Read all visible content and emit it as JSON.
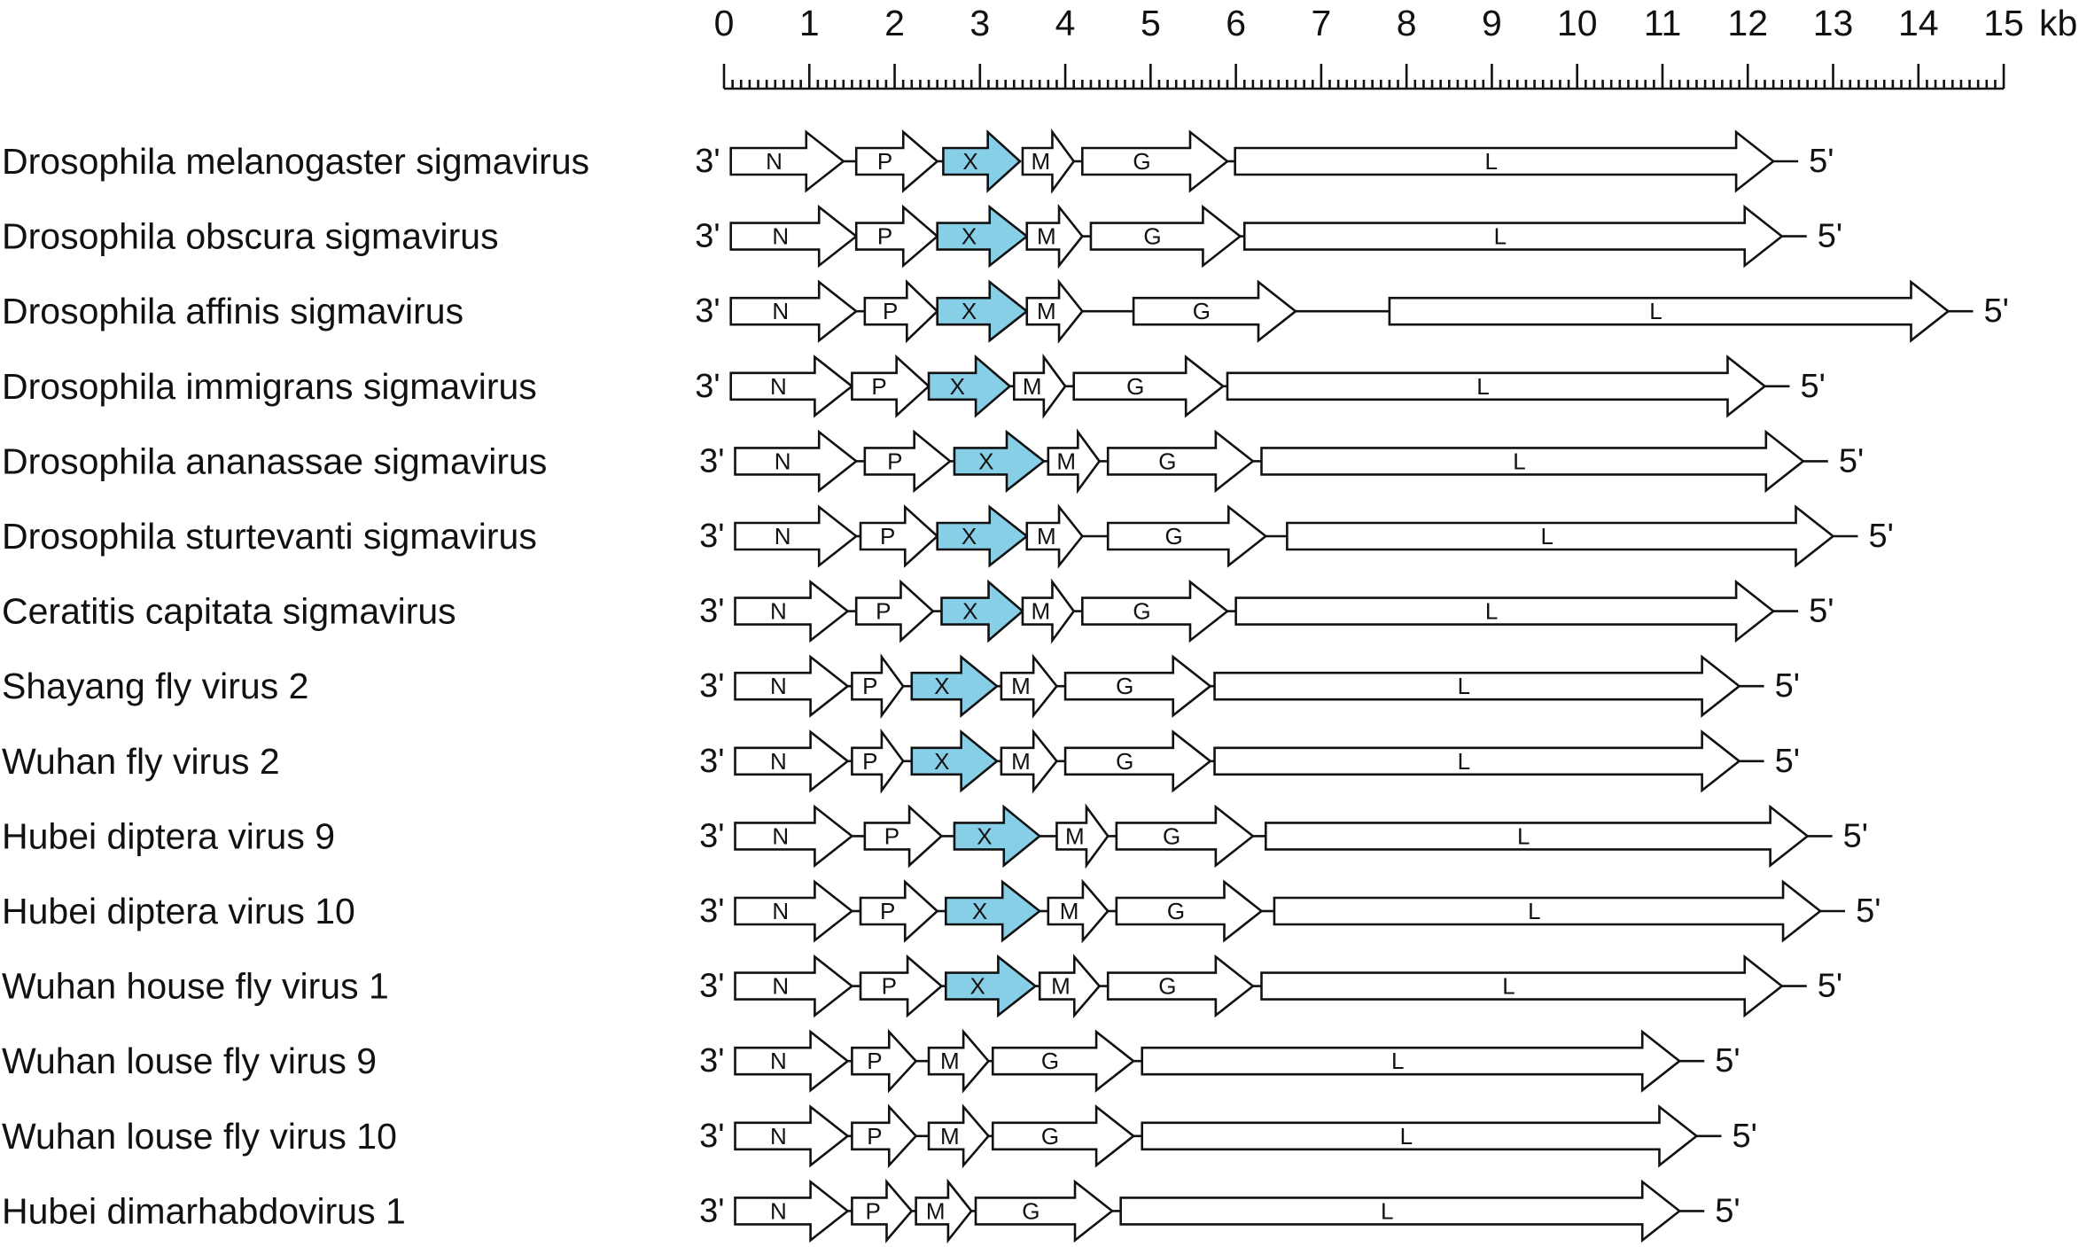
{
  "scale": {
    "unit": "kb",
    "min": 0,
    "max": 15,
    "major_ticks": [
      "0",
      "1",
      "2",
      "3",
      "4",
      "5",
      "6",
      "7",
      "8",
      "9",
      "10",
      "11",
      "12",
      "13",
      "14",
      "15"
    ],
    "minor_per_major": 10
  },
  "end_labels": {
    "left": "3'",
    "right": "5'"
  },
  "colors": {
    "x_gene_fill": "#87cfe6",
    "default_fill": "#ffffff",
    "stroke": "#111111"
  },
  "viruses": [
    {
      "name": "Drosophila melanogaster sigmavirus",
      "end": 12.3,
      "genes": [
        {
          "label": "N",
          "start": 0.08,
          "end": 1.4
        },
        {
          "label": "P",
          "start": 1.55,
          "end": 2.5
        },
        {
          "label": "X",
          "start": 2.57,
          "end": 3.47,
          "highlight": true
        },
        {
          "label": "M",
          "start": 3.5,
          "end": 4.1
        },
        {
          "label": "G",
          "start": 4.2,
          "end": 5.9
        },
        {
          "label": "L",
          "start": 5.99,
          "end": 12.3
        }
      ]
    },
    {
      "name": "Drosophila obscura sigmavirus",
      "end": 12.4,
      "genes": [
        {
          "label": "N",
          "start": 0.08,
          "end": 1.55
        },
        {
          "label": "P",
          "start": 1.55,
          "end": 2.5
        },
        {
          "label": "X",
          "start": 2.5,
          "end": 3.55,
          "highlight": true
        },
        {
          "label": "M",
          "start": 3.55,
          "end": 4.2
        },
        {
          "label": "G",
          "start": 4.3,
          "end": 6.05
        },
        {
          "label": "L",
          "start": 6.1,
          "end": 12.4
        }
      ]
    },
    {
      "name": "Drosophila affinis sigmavirus",
      "end": 14.35,
      "genes": [
        {
          "label": "N",
          "start": 0.08,
          "end": 1.55
        },
        {
          "label": "P",
          "start": 1.65,
          "end": 2.5
        },
        {
          "label": "X",
          "start": 2.5,
          "end": 3.55,
          "highlight": true
        },
        {
          "label": "M",
          "start": 3.55,
          "end": 4.2
        },
        {
          "label": "G",
          "start": 4.8,
          "end": 6.7
        },
        {
          "label": "L",
          "start": 7.8,
          "end": 14.35
        }
      ]
    },
    {
      "name": "Drosophila immigrans sigmavirus",
      "end": 12.2,
      "genes": [
        {
          "label": "N",
          "start": 0.08,
          "end": 1.5
        },
        {
          "label": "P",
          "start": 1.5,
          "end": 2.4
        },
        {
          "label": "X",
          "start": 2.4,
          "end": 3.35,
          "highlight": true
        },
        {
          "label": "M",
          "start": 3.4,
          "end": 4.0
        },
        {
          "label": "G",
          "start": 4.1,
          "end": 5.85
        },
        {
          "label": "L",
          "start": 5.9,
          "end": 12.2
        }
      ]
    },
    {
      "name": "Drosophila ananassae sigmavirus",
      "end": 12.65,
      "genes": [
        {
          "label": "N",
          "start": 0.13,
          "end": 1.55
        },
        {
          "label": "P",
          "start": 1.65,
          "end": 2.65
        },
        {
          "label": "X",
          "start": 2.7,
          "end": 3.75,
          "highlight": true
        },
        {
          "label": "M",
          "start": 3.8,
          "end": 4.4
        },
        {
          "label": "G",
          "start": 4.5,
          "end": 6.2
        },
        {
          "label": "L",
          "start": 6.3,
          "end": 12.65
        }
      ]
    },
    {
      "name": "Drosophila sturtevanti sigmavirus",
      "end": 13.0,
      "genes": [
        {
          "label": "N",
          "start": 0.13,
          "end": 1.55
        },
        {
          "label": "P",
          "start": 1.6,
          "end": 2.5
        },
        {
          "label": "X",
          "start": 2.5,
          "end": 3.55,
          "highlight": true
        },
        {
          "label": "M",
          "start": 3.55,
          "end": 4.2
        },
        {
          "label": "G",
          "start": 4.5,
          "end": 6.35
        },
        {
          "label": "L",
          "start": 6.6,
          "end": 13.0
        }
      ]
    },
    {
      "name": "Ceratitis capitata sigmavirus",
      "end": 12.3,
      "genes": [
        {
          "label": "N",
          "start": 0.13,
          "end": 1.45
        },
        {
          "label": "P",
          "start": 1.55,
          "end": 2.45
        },
        {
          "label": "X",
          "start": 2.55,
          "end": 3.5,
          "highlight": true
        },
        {
          "label": "M",
          "start": 3.5,
          "end": 4.1
        },
        {
          "label": "G",
          "start": 4.2,
          "end": 5.9
        },
        {
          "label": "L",
          "start": 6.0,
          "end": 12.3
        }
      ]
    },
    {
      "name": "Shayang fly virus 2",
      "end": 11.9,
      "genes": [
        {
          "label": "N",
          "start": 0.13,
          "end": 1.45
        },
        {
          "label": "P",
          "start": 1.5,
          "end": 2.1
        },
        {
          "label": "X",
          "start": 2.2,
          "end": 3.2,
          "highlight": true
        },
        {
          "label": "M",
          "start": 3.25,
          "end": 3.9
        },
        {
          "label": "G",
          "start": 4.0,
          "end": 5.7
        },
        {
          "label": "L",
          "start": 5.75,
          "end": 11.9
        }
      ]
    },
    {
      "name": "Wuhan fly virus 2",
      "end": 11.9,
      "genes": [
        {
          "label": "N",
          "start": 0.13,
          "end": 1.45
        },
        {
          "label": "P",
          "start": 1.5,
          "end": 2.1
        },
        {
          "label": "X",
          "start": 2.2,
          "end": 3.2,
          "highlight": true
        },
        {
          "label": "M",
          "start": 3.25,
          "end": 3.9
        },
        {
          "label": "G",
          "start": 4.0,
          "end": 5.7
        },
        {
          "label": "L",
          "start": 5.75,
          "end": 11.9
        }
      ]
    },
    {
      "name": "Hubei diptera virus 9",
      "end": 12.7,
      "genes": [
        {
          "label": "N",
          "start": 0.13,
          "end": 1.5
        },
        {
          "label": "P",
          "start": 1.65,
          "end": 2.55
        },
        {
          "label": "X",
          "start": 2.7,
          "end": 3.7,
          "highlight": true
        },
        {
          "label": "M",
          "start": 3.9,
          "end": 4.5
        },
        {
          "label": "G",
          "start": 4.6,
          "end": 6.2
        },
        {
          "label": "L",
          "start": 6.35,
          "end": 12.7
        }
      ]
    },
    {
      "name": "Hubei diptera virus 10",
      "end": 12.85,
      "genes": [
        {
          "label": "N",
          "start": 0.13,
          "end": 1.5
        },
        {
          "label": "P",
          "start": 1.6,
          "end": 2.5
        },
        {
          "label": "X",
          "start": 2.6,
          "end": 3.7,
          "highlight": true
        },
        {
          "label": "M",
          "start": 3.8,
          "end": 4.5
        },
        {
          "label": "G",
          "start": 4.6,
          "end": 6.3
        },
        {
          "label": "L",
          "start": 6.45,
          "end": 12.85
        }
      ]
    },
    {
      "name": "Wuhan house fly virus 1",
      "end": 12.4,
      "genes": [
        {
          "label": "N",
          "start": 0.13,
          "end": 1.5
        },
        {
          "label": "P",
          "start": 1.6,
          "end": 2.55
        },
        {
          "label": "X",
          "start": 2.6,
          "end": 3.65,
          "highlight": true
        },
        {
          "label": "M",
          "start": 3.7,
          "end": 4.4
        },
        {
          "label": "G",
          "start": 4.5,
          "end": 6.2
        },
        {
          "label": "L",
          "start": 6.3,
          "end": 12.4
        }
      ]
    },
    {
      "name": "Wuhan louse fly virus 9",
      "end": 11.2,
      "genes": [
        {
          "label": "N",
          "start": 0.13,
          "end": 1.45
        },
        {
          "label": "P",
          "start": 1.5,
          "end": 2.25
        },
        {
          "label": "M",
          "start": 2.4,
          "end": 3.1
        },
        {
          "label": "G",
          "start": 3.15,
          "end": 4.8
        },
        {
          "label": "L",
          "start": 4.9,
          "end": 11.2
        }
      ]
    },
    {
      "name": "Wuhan louse fly virus 10",
      "end": 11.4,
      "genes": [
        {
          "label": "N",
          "start": 0.13,
          "end": 1.45
        },
        {
          "label": "P",
          "start": 1.5,
          "end": 2.25
        },
        {
          "label": "M",
          "start": 2.4,
          "end": 3.1
        },
        {
          "label": "G",
          "start": 3.15,
          "end": 4.8
        },
        {
          "label": "L",
          "start": 4.9,
          "end": 11.4
        }
      ]
    },
    {
      "name": "Hubei dimarhabdovirus 1",
      "end": 11.2,
      "genes": [
        {
          "label": "N",
          "start": 0.13,
          "end": 1.45
        },
        {
          "label": "P",
          "start": 1.5,
          "end": 2.2
        },
        {
          "label": "M",
          "start": 2.25,
          "end": 2.9
        },
        {
          "label": "G",
          "start": 2.95,
          "end": 4.55
        },
        {
          "label": "L",
          "start": 4.65,
          "end": 11.2
        }
      ]
    }
  ]
}
